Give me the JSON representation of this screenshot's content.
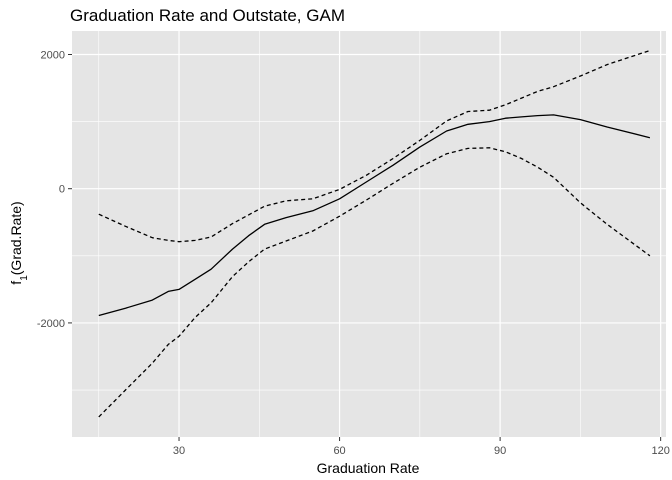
{
  "chart_data": {
    "type": "line",
    "title": "Graduation Rate and Outstate, GAM",
    "xlabel": "Graduation Rate",
    "ylabel_main": "f",
    "ylabel_sub": "1",
    "ylabel_rest": "(Grad.Rate)",
    "xlim": [
      10,
      121
    ],
    "ylim": [
      -3700,
      2350
    ],
    "xticks": [
      30,
      60,
      90,
      120
    ],
    "xtick_labels": [
      "30",
      "60",
      "90",
      "120"
    ],
    "yticks": [
      2000,
      0,
      -2000
    ],
    "ytick_labels": [
      "2000",
      "0",
      "-2000"
    ],
    "grid": true,
    "colors": {
      "panel": "#e5e5e5",
      "grid": "#ffffff",
      "line": "#000000"
    },
    "series": [
      {
        "style": "solid",
        "x": [
          15,
          20,
          25,
          28,
          30,
          33,
          36,
          40,
          43,
          46,
          50,
          55,
          60,
          65,
          70,
          75,
          80,
          84,
          88,
          91,
          94,
          97,
          100,
          105,
          110,
          118
        ],
        "y": [
          -1890,
          -1780,
          -1660,
          -1530,
          -1500,
          -1350,
          -1200,
          -900,
          -700,
          -530,
          -430,
          -330,
          -150,
          100,
          350,
          620,
          860,
          960,
          1000,
          1050,
          1070,
          1090,
          1100,
          1030,
          920,
          760
        ]
      },
      {
        "style": "dashed",
        "x": [
          15,
          20,
          25,
          28,
          30,
          33,
          36,
          40,
          43,
          46,
          50,
          55,
          60,
          65,
          70,
          75,
          80,
          84,
          88,
          91,
          94,
          97,
          100,
          105,
          110,
          118
        ],
        "y": [
          -380,
          -560,
          -730,
          -770,
          -790,
          -770,
          -720,
          -520,
          -390,
          -260,
          -180,
          -150,
          -10,
          200,
          450,
          720,
          1010,
          1150,
          1170,
          1250,
          1350,
          1450,
          1520,
          1680,
          1850,
          2060
        ]
      },
      {
        "style": "dashed",
        "x": [
          15,
          20,
          25,
          28,
          30,
          33,
          36,
          40,
          43,
          46,
          50,
          55,
          60,
          65,
          70,
          75,
          80,
          84,
          88,
          91,
          94,
          97,
          100,
          105,
          110,
          118
        ],
        "y": [
          -3400,
          -3000,
          -2600,
          -2320,
          -2200,
          -1920,
          -1700,
          -1310,
          -1090,
          -900,
          -780,
          -630,
          -410,
          -170,
          80,
          320,
          520,
          600,
          610,
          550,
          450,
          320,
          170,
          -210,
          -530,
          -1000
        ]
      }
    ]
  }
}
